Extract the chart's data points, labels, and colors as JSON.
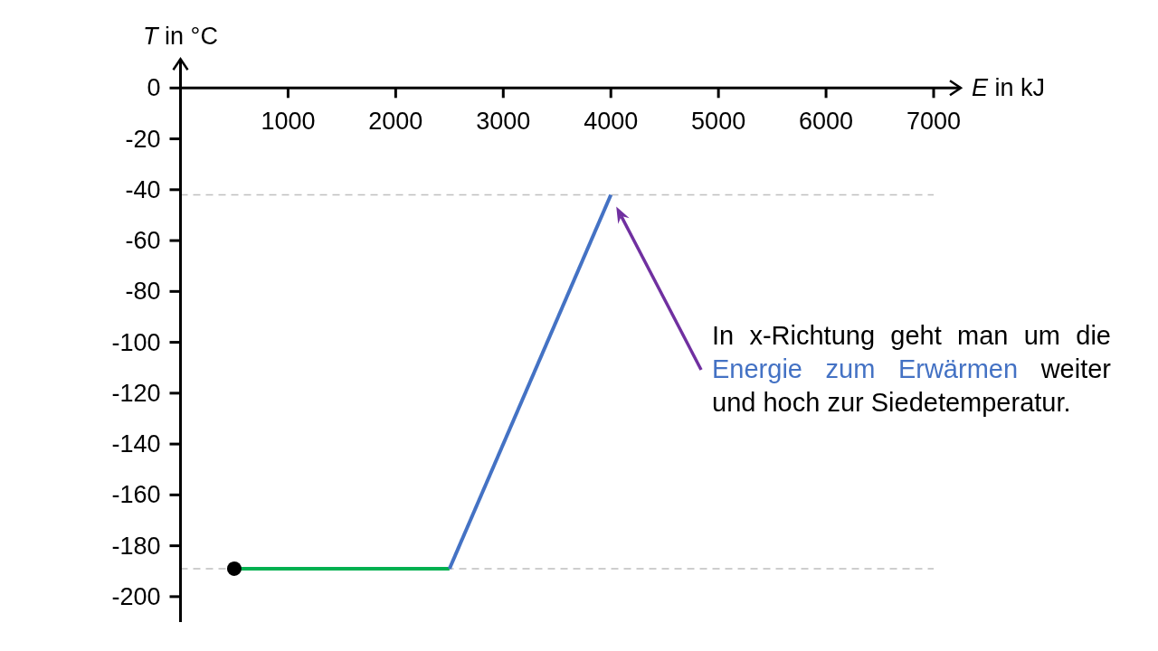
{
  "chart_data": {
    "type": "line",
    "xlabel": "E in kJ",
    "ylabel": "T in °C",
    "xlim": [
      0,
      7000
    ],
    "xticks": [
      1000,
      2000,
      3000,
      4000,
      5000,
      6000,
      7000
    ],
    "ylim": [
      -210,
      0
    ],
    "yticks": [
      0,
      -20,
      -40,
      -60,
      -80,
      -100,
      -120,
      -140,
      -160,
      -180,
      -200
    ],
    "series": [
      {
        "x": [
          500,
          2500
        ],
        "values": [
          -189,
          -189
        ],
        "color": "#00b050"
      },
      {
        "x": [
          2500,
          4000
        ],
        "values": [
          -189,
          -42
        ],
        "color": "#4472c4"
      },
      {
        "type": "scatter",
        "x": [
          500
        ],
        "values": [
          -189
        ],
        "color": "#000000",
        "marker": "circle"
      }
    ],
    "ref_lines": [
      {
        "axis": "y",
        "value": -42,
        "color": "#bfbfbf",
        "line_style": "dashed"
      },
      {
        "axis": "y",
        "value": -189,
        "color": "#bfbfbf",
        "line_style": "dashed"
      }
    ],
    "annotations": [
      "In x-Richtung geht man um die Energie zum Erwärmen weiter und hoch zur Siedetemperatur."
    ]
  }
}
